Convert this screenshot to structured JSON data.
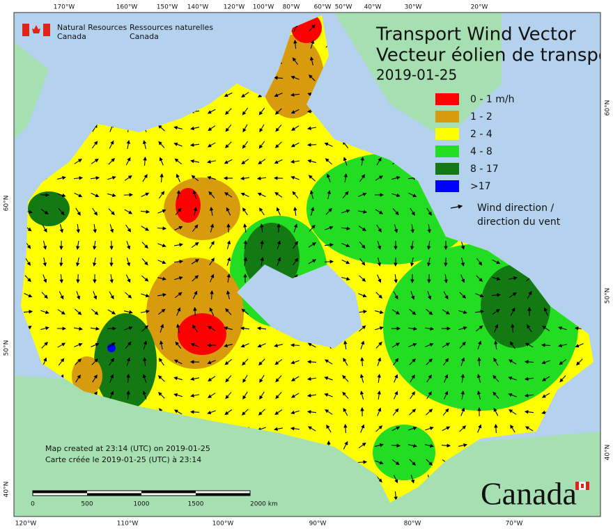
{
  "header": {
    "agency_en": [
      "Natural Resources",
      "Canada"
    ],
    "agency_fr": [
      "Ressources naturelles",
      "Canada"
    ]
  },
  "title": {
    "line1": "Transport Wind Vector",
    "line2": "Vecteur éolien de transport",
    "date": "2019-01-25"
  },
  "legend": {
    "items": [
      {
        "label": "0 - 1 m/h",
        "color": "#ff0000"
      },
      {
        "label": "1 - 2",
        "color": "#d89b0e"
      },
      {
        "label": "2 - 4",
        "color": "#ffff00"
      },
      {
        "label": "4 - 8",
        "color": "#22dd22"
      },
      {
        "label": "8 - 17",
        "color": "#137a13"
      },
      {
        "label": ">17",
        "color": "#0000ff"
      }
    ],
    "wind_direction": [
      "Wind direction /",
      "direction du vent"
    ]
  },
  "credits": [
    "Map created at 23:14 (UTC) on 2019-01-25",
    "Carte créée le 2019-01-25 (UTC) à 23:14"
  ],
  "scale": {
    "labels": [
      "0",
      "500",
      "1000",
      "1500",
      "2000 km"
    ]
  },
  "graticule": {
    "top": [
      "170°W",
      "160°W",
      "150°W",
      "140°W",
      "120°W",
      "100°W",
      "80°W",
      "60°W",
      "50°W",
      "40°W",
      "30°W",
      "20°W"
    ],
    "bottom": [
      "120°W",
      "110°W",
      "100°W",
      "90°W",
      "80°W",
      "70°W"
    ],
    "left": [
      "60°N",
      "50°N",
      "40°N"
    ],
    "right": [
      "60°N",
      "50°N",
      "40°N"
    ]
  },
  "wordmark": "Canada"
}
